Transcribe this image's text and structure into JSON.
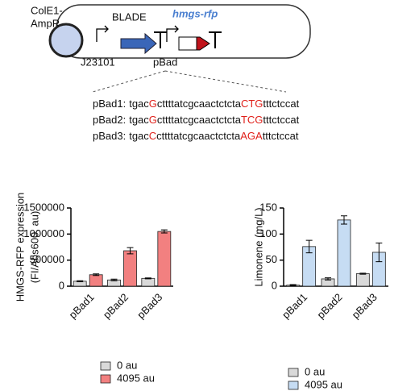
{
  "diagram": {
    "origin_label": [
      "ColE1-",
      "AmpR"
    ],
    "gene1": "BLADE",
    "gene2": "hmgs-rfp",
    "promoter1": "J23101",
    "promoter2": "pBad",
    "sequences": [
      {
        "label": "pBad1:",
        "segments": [
          "tgac",
          "G",
          "cttttatcgcaactctcta",
          "CTG",
          "tttctccat"
        ]
      },
      {
        "label": "pBad2:",
        "segments": [
          "tgac",
          "G",
          "cttttatcgcaactctcta",
          "TCG",
          "tttctccat"
        ]
      },
      {
        "label": "pBad3:",
        "segments": [
          "tgac",
          "C",
          "cttttatcgcaactctcta",
          "AGA",
          "tttctccat"
        ]
      }
    ]
  },
  "chart_data": [
    {
      "type": "bar",
      "ylabel": [
        "HMGS-RFP expression",
        "(FI/Abs600, au)"
      ],
      "categories": [
        "pBad1",
        "pBad2",
        "pBad3"
      ],
      "ylim": [
        0,
        1500000
      ],
      "yticks": [
        0,
        500000,
        1000000,
        1500000
      ],
      "series": [
        {
          "name": "0 au",
          "color": "#d9d9d9",
          "values": [
            95000,
            120000,
            150000
          ],
          "errors": [
            10000,
            15000,
            8000
          ]
        },
        {
          "name": "4095 au",
          "color": "#f28080",
          "values": [
            220000,
            680000,
            1050000
          ],
          "errors": [
            15000,
            60000,
            30000
          ]
        }
      ]
    },
    {
      "type": "bar",
      "ylabel": [
        "Limonene (mg/L)"
      ],
      "categories": [
        "pBad1",
        "pBad2",
        "pBad3"
      ],
      "ylim": [
        0,
        150
      ],
      "yticks": [
        0,
        50,
        100,
        150
      ],
      "series": [
        {
          "name": "0 au",
          "color": "#d9d9d9",
          "values": [
            2,
            14,
            24
          ],
          "errors": [
            1,
            2,
            1
          ]
        },
        {
          "name": "4095 au",
          "color": "#c6dcf3",
          "values": [
            76,
            127,
            65
          ],
          "errors": [
            12,
            8,
            18
          ]
        }
      ]
    }
  ]
}
